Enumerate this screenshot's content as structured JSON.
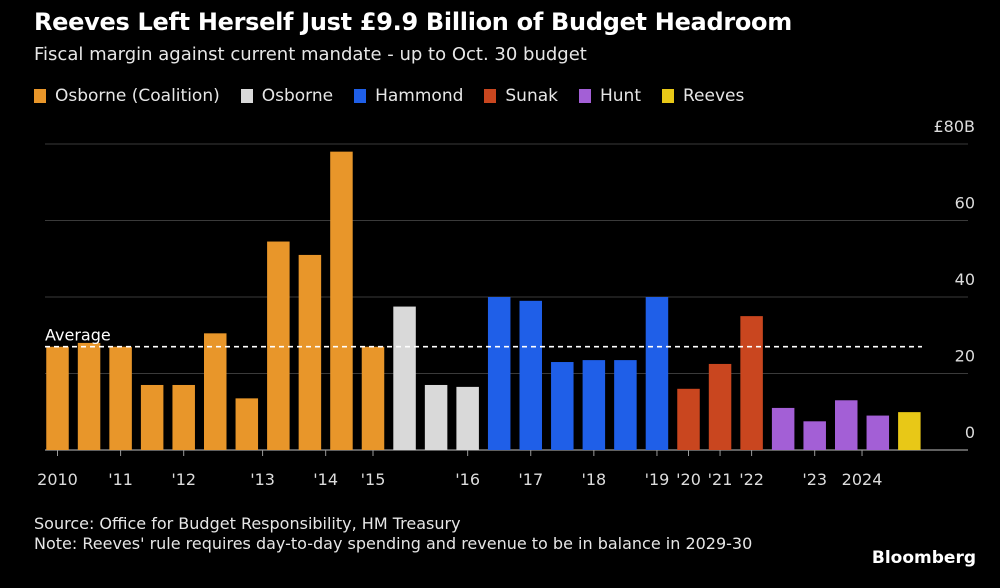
{
  "header": {
    "title": "Reeves Left Herself Just £9.9 Billion of Budget Headroom",
    "subtitle": "Fiscal margin against current mandate - up to Oct. 30 budget"
  },
  "colors": {
    "background": "#000000",
    "gridline": "#3a3a3a",
    "average_line": "#ffffff"
  },
  "chart_data": {
    "type": "bar",
    "title": "Reeves Left Herself Just £9.9 Billion of Budget Headroom",
    "subtitle": "Fiscal margin against current mandate - up to Oct. 30 budget",
    "ylabel": "£ billion",
    "ylim": [
      0,
      80
    ],
    "y_ticks": [
      {
        "value": 80,
        "label": "£80B"
      },
      {
        "value": 60,
        "label": "60"
      },
      {
        "value": 40,
        "label": "40"
      },
      {
        "value": 20,
        "label": "20"
      },
      {
        "value": 0,
        "label": "0"
      }
    ],
    "legend": [
      {
        "name": "Osborne (Coalition)",
        "color": "#e8962a"
      },
      {
        "name": "Osborne",
        "color": "#d9d9d9"
      },
      {
        "name": "Hammond",
        "color": "#1f5fe8"
      },
      {
        "name": "Sunak",
        "color": "#c9461f"
      },
      {
        "name": "Hunt",
        "color": "#a35fd6"
      },
      {
        "name": "Reeves",
        "color": "#e8c817"
      }
    ],
    "bars": [
      {
        "chancellor": "Osborne (Coalition)",
        "value": 27
      },
      {
        "chancellor": "Osborne (Coalition)",
        "value": 28
      },
      {
        "chancellor": "Osborne (Coalition)",
        "value": 27
      },
      {
        "chancellor": "Osborne (Coalition)",
        "value": 17
      },
      {
        "chancellor": "Osborne (Coalition)",
        "value": 17
      },
      {
        "chancellor": "Osborne (Coalition)",
        "value": 30.5
      },
      {
        "chancellor": "Osborne (Coalition)",
        "value": 13.5
      },
      {
        "chancellor": "Osborne (Coalition)",
        "value": 54.5
      },
      {
        "chancellor": "Osborne (Coalition)",
        "value": 51
      },
      {
        "chancellor": "Osborne (Coalition)",
        "value": 78
      },
      {
        "chancellor": "Osborne (Coalition)",
        "value": 27
      },
      {
        "chancellor": "Osborne",
        "value": 37.5
      },
      {
        "chancellor": "Osborne",
        "value": 17
      },
      {
        "chancellor": "Osborne",
        "value": 16.5
      },
      {
        "chancellor": "Hammond",
        "value": 40
      },
      {
        "chancellor": "Hammond",
        "value": 39
      },
      {
        "chancellor": "Hammond",
        "value": 23
      },
      {
        "chancellor": "Hammond",
        "value": 23.5
      },
      {
        "chancellor": "Hammond",
        "value": 23.5
      },
      {
        "chancellor": "Hammond",
        "value": 40
      },
      {
        "chancellor": "Sunak",
        "value": 16
      },
      {
        "chancellor": "Sunak",
        "value": 22.5
      },
      {
        "chancellor": "Sunak",
        "value": 35
      },
      {
        "chancellor": "Hunt",
        "value": 11
      },
      {
        "chancellor": "Hunt",
        "value": 7.5
      },
      {
        "chancellor": "Hunt",
        "value": 13
      },
      {
        "chancellor": "Hunt",
        "value": 9
      },
      {
        "chancellor": "Reeves",
        "value": 9.9
      }
    ],
    "x_tick_labels": [
      {
        "label": "2010",
        "bar_index": 0
      },
      {
        "label": "'11",
        "bar_index": 2
      },
      {
        "label": "'12",
        "bar_index": 4
      },
      {
        "label": "'13",
        "bar_index": 6.5
      },
      {
        "label": "'14",
        "bar_index": 8.5
      },
      {
        "label": "'15",
        "bar_index": 10
      },
      {
        "label": "'16",
        "bar_index": 13
      },
      {
        "label": "'17",
        "bar_index": 15
      },
      {
        "label": "'18",
        "bar_index": 17
      },
      {
        "label": "'19",
        "bar_index": 19
      },
      {
        "label": "'20",
        "bar_index": 20
      },
      {
        "label": "'21",
        "bar_index": 21
      },
      {
        "label": "'22",
        "bar_index": 22
      },
      {
        "label": "'23",
        "bar_index": 24
      },
      {
        "label": "2024",
        "bar_index": 25.5
      }
    ],
    "average": {
      "value": 27,
      "label": "Average"
    },
    "grid": true
  },
  "footer": {
    "source": "Source: Office for Budget Responsibility, HM Treasury",
    "note": "Note: Reeves' rule requires day-to-day spending and revenue to be in balance in 2029-30",
    "brand": "Bloomberg"
  }
}
